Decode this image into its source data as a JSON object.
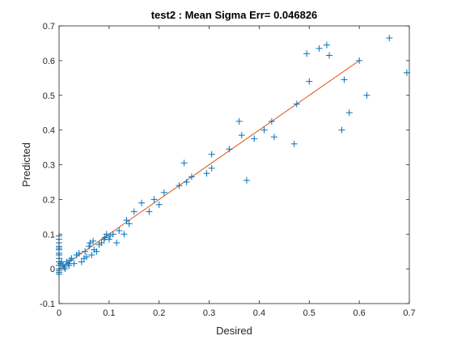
{
  "chart_data": {
    "type": "scatter",
    "title": "test2 :  Mean Sigma Err= 0.046826",
    "xlabel": "Desired",
    "ylabel": "Predicted",
    "xlim": [
      0,
      0.7
    ],
    "ylim": [
      -0.1,
      0.7
    ],
    "xticks": [
      0,
      0.1,
      0.2,
      0.3,
      0.4,
      0.5,
      0.6,
      0.7
    ],
    "xtick_labels": [
      "0",
      "0.1",
      "0.2",
      "0.3",
      "0.4",
      "0.5",
      "0.6",
      "0.7"
    ],
    "yticks": [
      -0.1,
      0,
      0.1,
      0.2,
      0.3,
      0.4,
      0.5,
      0.6,
      0.7
    ],
    "ytick_labels": [
      "-0.1",
      "0",
      "0.1",
      "0.2",
      "0.3",
      "0.4",
      "0.5",
      "0.6",
      "0.7"
    ],
    "grid": false,
    "marker": "+",
    "colors": {
      "points": "#0072BD",
      "fit_line": "#D95319",
      "axes": "#262626"
    },
    "fit_line": {
      "x": [
        0,
        0.6
      ],
      "y": [
        0,
        0.6
      ]
    },
    "points": [
      [
        0.0,
        0.095
      ],
      [
        0.0,
        0.085
      ],
      [
        0.0,
        0.075
      ],
      [
        0.0,
        0.065
      ],
      [
        0.0,
        0.06
      ],
      [
        0.0,
        0.055
      ],
      [
        0.0,
        0.045
      ],
      [
        0.0,
        0.04
      ],
      [
        0.0,
        0.03
      ],
      [
        0.0,
        0.02
      ],
      [
        0.0,
        0.01
      ],
      [
        0.0,
        0.0
      ],
      [
        0.0,
        -0.005
      ],
      [
        0.0,
        -0.01
      ],
      [
        0.0,
        -0.015
      ],
      [
        0.003,
        0.015
      ],
      [
        0.005,
        0.02
      ],
      [
        0.008,
        0.01
      ],
      [
        0.01,
        0.005
      ],
      [
        0.012,
        0.0
      ],
      [
        0.015,
        0.02
      ],
      [
        0.018,
        0.015
      ],
      [
        0.02,
        0.01
      ],
      [
        0.022,
        0.025
      ],
      [
        0.025,
        0.03
      ],
      [
        0.03,
        0.015
      ],
      [
        0.035,
        0.04
      ],
      [
        0.04,
        0.045
      ],
      [
        0.045,
        0.02
      ],
      [
        0.05,
        0.03
      ],
      [
        0.052,
        0.05
      ],
      [
        0.055,
        0.035
      ],
      [
        0.06,
        0.065
      ],
      [
        0.062,
        0.075
      ],
      [
        0.065,
        0.04
      ],
      [
        0.068,
        0.08
      ],
      [
        0.07,
        0.055
      ],
      [
        0.075,
        0.05
      ],
      [
        0.08,
        0.07
      ],
      [
        0.085,
        0.075
      ],
      [
        0.09,
        0.085
      ],
      [
        0.092,
        0.09
      ],
      [
        0.095,
        0.1
      ],
      [
        0.1,
        0.085
      ],
      [
        0.102,
        0.095
      ],
      [
        0.108,
        0.1
      ],
      [
        0.115,
        0.075
      ],
      [
        0.12,
        0.11
      ],
      [
        0.13,
        0.1
      ],
      [
        0.135,
        0.14
      ],
      [
        0.14,
        0.13
      ],
      [
        0.15,
        0.165
      ],
      [
        0.165,
        0.19
      ],
      [
        0.18,
        0.165
      ],
      [
        0.19,
        0.2
      ],
      [
        0.2,
        0.185
      ],
      [
        0.21,
        0.22
      ],
      [
        0.24,
        0.24
      ],
      [
        0.25,
        0.305
      ],
      [
        0.255,
        0.25
      ],
      [
        0.265,
        0.265
      ],
      [
        0.295,
        0.275
      ],
      [
        0.305,
        0.33
      ],
      [
        0.305,
        0.29
      ],
      [
        0.34,
        0.345
      ],
      [
        0.36,
        0.425
      ],
      [
        0.365,
        0.385
      ],
      [
        0.375,
        0.255
      ],
      [
        0.39,
        0.375
      ],
      [
        0.41,
        0.4
      ],
      [
        0.425,
        0.425
      ],
      [
        0.43,
        0.38
      ],
      [
        0.47,
        0.36
      ],
      [
        0.475,
        0.475
      ],
      [
        0.495,
        0.62
      ],
      [
        0.5,
        0.54
      ],
      [
        0.52,
        0.635
      ],
      [
        0.535,
        0.645
      ],
      [
        0.54,
        0.615
      ],
      [
        0.565,
        0.4
      ],
      [
        0.57,
        0.545
      ],
      [
        0.58,
        0.45
      ],
      [
        0.6,
        0.6
      ],
      [
        0.615,
        0.5
      ],
      [
        0.66,
        0.665
      ],
      [
        0.695,
        0.565
      ]
    ]
  }
}
